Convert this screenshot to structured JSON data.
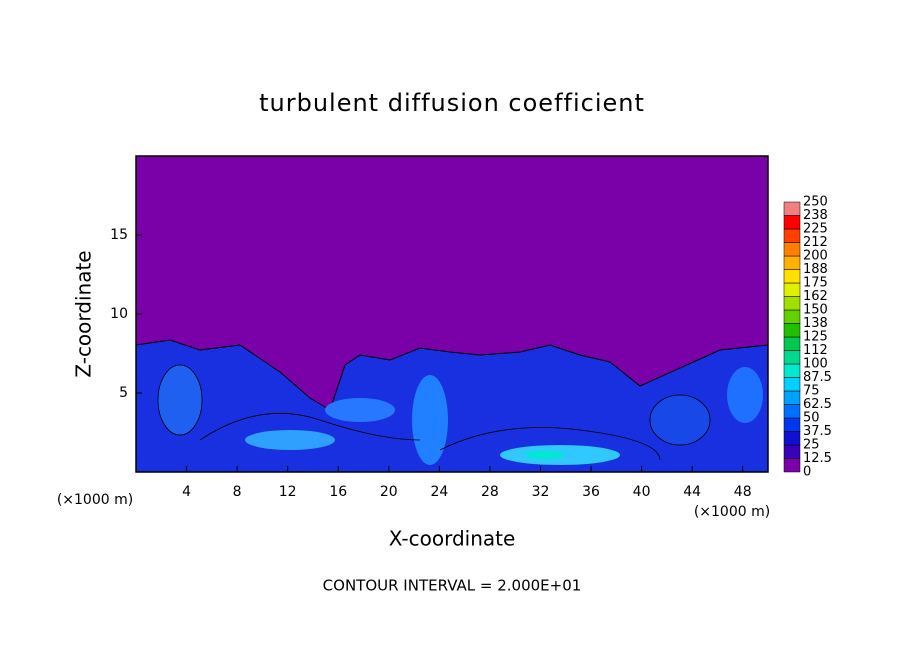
{
  "chart_data": {
    "type": "contour",
    "title": "turbulent diffusion coefficient",
    "x_label": "X-coordinate",
    "y_label": "Z-coordinate",
    "x_unit": "(×1000 m)",
    "x_unit_right": "(×1000 m)",
    "footnote": "CONTOUR INTERVAL = 2.000E+01",
    "xlim": [
      0,
      50
    ],
    "ylim": [
      0,
      20
    ],
    "xticks": [
      4,
      8,
      12,
      16,
      20,
      24,
      28,
      32,
      36,
      40,
      44,
      48
    ],
    "yticks": [
      5,
      10,
      15
    ],
    "colorbar": {
      "lim": [
        0,
        250
      ],
      "ticks": [
        0,
        12.5,
        25,
        37.5,
        50,
        62.5,
        75,
        87.5,
        100,
        {
          "value": 112.5,
          "label": "112"
        },
        125,
        {
          "value": 137.5,
          "label": "138"
        },
        150,
        {
          "value": 162.5,
          "label": "162"
        },
        175,
        {
          "value": 187.5,
          "label": "188"
        },
        200,
        {
          "value": 212.5,
          "label": "212"
        },
        225,
        {
          "value": 237.5,
          "label": "238"
        },
        250
      ],
      "colors": [
        "#7a00a8",
        "#3a00b8",
        "#1010d0",
        "#0038f0",
        "#0070ff",
        "#00a0ff",
        "#00d0ff",
        "#00e8d0",
        "#00d890",
        "#00c850",
        "#20c000",
        "#60d000",
        "#a0e000",
        "#e0f000",
        "#ffe000",
        "#ffb000",
        "#ff8000",
        "#ff4000",
        "#ff0000",
        "#f08080"
      ]
    }
  }
}
